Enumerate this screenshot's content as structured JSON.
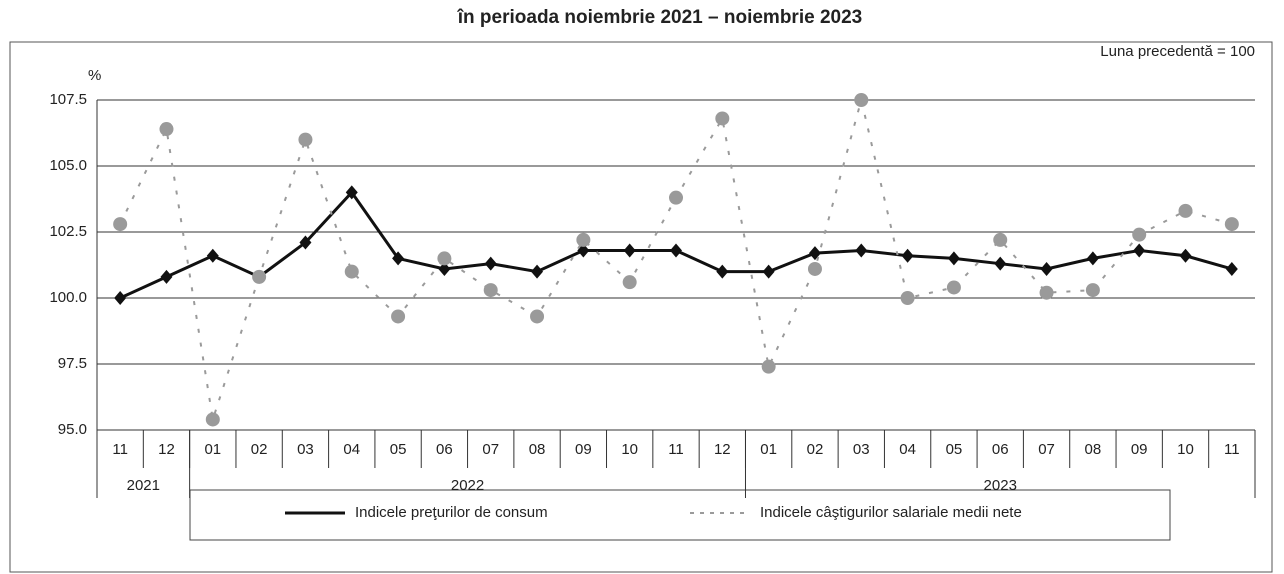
{
  "chart_data": {
    "type": "line",
    "title": "în perioada noiembrie 2021 – noiembrie 2023",
    "subtitle": "Luna precedentă = 100",
    "y_label": "%",
    "categories": [
      "11",
      "12",
      "01",
      "02",
      "03",
      "04",
      "05",
      "06",
      "07",
      "08",
      "09",
      "10",
      "11",
      "12",
      "01",
      "02",
      "03",
      "04",
      "05",
      "06",
      "07",
      "08",
      "09",
      "10",
      "11"
    ],
    "x_groups": [
      {
        "label": "2021",
        "months": 2
      },
      {
        "label": "2022",
        "months": 12
      },
      {
        "label": "2023",
        "months": 11
      }
    ],
    "series": [
      {
        "name": "Indicele preţurilor de consum",
        "color": "#111111",
        "values": [
          100.0,
          100.8,
          101.6,
          100.8,
          102.1,
          104.0,
          101.5,
          101.1,
          101.3,
          101.0,
          101.8,
          101.8,
          101.8,
          101.0,
          101.0,
          101.7,
          101.8,
          101.6,
          101.5,
          101.3,
          101.1,
          101.5,
          101.8,
          101.6,
          101.1
        ]
      },
      {
        "name": "Indicele câştigurilor salariale medii nete",
        "color": "#9a9a9a",
        "values": [
          102.8,
          106.4,
          95.4,
          100.8,
          106.0,
          101.0,
          99.3,
          101.5,
          100.3,
          99.3,
          102.2,
          100.6,
          103.8,
          106.8,
          97.4,
          101.1,
          107.5,
          100.0,
          100.4,
          102.2,
          100.2,
          100.3,
          102.4,
          103.3,
          102.8
        ]
      }
    ],
    "ylim": [
      95,
      107.5
    ],
    "yticks": [
      {
        "value": 95,
        "label": "95.0"
      },
      {
        "value": 97.5,
        "label": "97.5"
      },
      {
        "value": 100,
        "label": "100.0"
      },
      {
        "value": 102.5,
        "label": "102.5"
      },
      {
        "value": 105,
        "label": "105.0"
      },
      {
        "value": 107.5,
        "label": "107.5"
      }
    ],
    "grid": true
  }
}
